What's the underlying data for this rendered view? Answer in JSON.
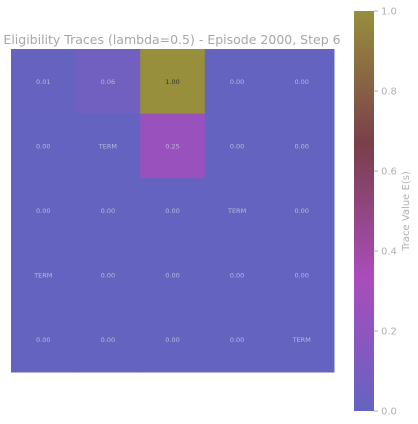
{
  "chart_data": {
    "type": "heatmap",
    "title": "Eligibility Traces (lambda=0.5) - Episode 2000, Step 6",
    "rows": 5,
    "cols": 5,
    "values": [
      [
        0.01,
        0.06,
        1.0,
        0.0,
        0.0
      ],
      [
        0.0,
        null,
        0.25,
        0.0,
        0.0
      ],
      [
        0.0,
        0.0,
        0.0,
        null,
        0.0
      ],
      [
        null,
        0.0,
        0.0,
        0.0,
        0.0
      ],
      [
        0.0,
        0.0,
        0.0,
        0.0,
        null
      ]
    ],
    "cell_labels": [
      [
        "0.01",
        "0.06",
        "1.00",
        "0.00",
        "0.00"
      ],
      [
        "0.00",
        "TERM",
        "0.25",
        "0.00",
        "0.00"
      ],
      [
        "0.00",
        "0.00",
        "0.00",
        "TERM",
        "0.00"
      ],
      [
        "TERM",
        "0.00",
        "0.00",
        "0.00",
        "0.00"
      ],
      [
        "0.00",
        "0.00",
        "0.00",
        "0.00",
        "TERM"
      ]
    ],
    "colorbar": {
      "label": "Trace Value E(s)",
      "range": [
        0,
        1
      ],
      "ticks": [
        "0.0",
        "0.2",
        "0.4",
        "0.6",
        "0.8",
        "1.0"
      ]
    },
    "colormap_stops": [
      "#6464c0",
      "#aa4cbc",
      "#7a3f4a",
      "#978f3c"
    ]
  }
}
